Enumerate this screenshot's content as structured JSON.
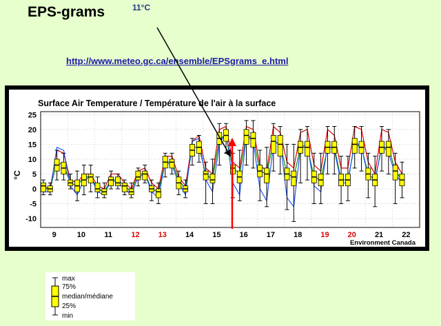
{
  "slide": {
    "title": "EPS-grams",
    "callout": "11°C",
    "link": "http://www.meteo.gc.ca/ensemble/EPSgrams_e.html"
  },
  "legend": {
    "labels": [
      "max",
      "75%",
      "median/médiane",
      "25%",
      "min"
    ]
  },
  "colors": {
    "background": "#e6ffcc",
    "box_fill": "#ffff00",
    "median": "#000000",
    "control_run": "#dd0000",
    "series_green": "#008800",
    "series_blue": "#2255ff",
    "weekend_day": "#dd0000",
    "arrow": "#ff0000"
  },
  "chart_data": {
    "type": "boxplot",
    "title": "Surface Air Temperature / Température de l'air à la surface",
    "ylabel": "°C",
    "ylim": [
      -13,
      26
    ],
    "yticks": [
      25,
      20,
      15,
      10,
      5,
      0,
      -5,
      -10
    ],
    "grid": true,
    "day_labels": [
      {
        "label": "9",
        "x": 9.5
      },
      {
        "label": "10",
        "x": 10.5
      },
      {
        "label": "11",
        "x": 11.5
      },
      {
        "label": "12",
        "x": 12.5,
        "color": "#dd0000"
      },
      {
        "label": "13",
        "x": 13.5,
        "color": "#dd0000"
      },
      {
        "label": "14",
        "x": 14.5
      },
      {
        "label": "15",
        "x": 15.5
      },
      {
        "label": "16",
        "x": 16.5
      },
      {
        "label": "17",
        "x": 17.5
      },
      {
        "label": "18",
        "x": 18.5
      },
      {
        "label": "19",
        "x": 19.5,
        "color": "#dd0000"
      },
      {
        "label": "20",
        "x": 20.5,
        "color": "#dd0000"
      },
      {
        "label": "21",
        "x": 21.5
      },
      {
        "label": "22",
        "x": 22.5
      }
    ],
    "xlim": [
      9.0,
      23.0
    ],
    "credit": "Environment Canada",
    "boxes": [
      {
        "t": 9.1,
        "min": -2,
        "q1": -1,
        "med": 1,
        "q3": 2,
        "max": 3
      },
      {
        "t": 9.35,
        "min": -2,
        "q1": -1,
        "med": 0,
        "q3": 1,
        "max": 2
      },
      {
        "t": 9.6,
        "min": 3,
        "q1": 6,
        "med": 8,
        "q3": 10,
        "max": 13
      },
      {
        "t": 9.85,
        "min": 3,
        "q1": 5,
        "med": 7,
        "q3": 9,
        "max": 12
      },
      {
        "t": 10.1,
        "min": 0,
        "q1": 1,
        "med": 2,
        "q3": 3,
        "max": 5
      },
      {
        "t": 10.35,
        "min": -4,
        "q1": -1,
        "med": 1,
        "q3": 3,
        "max": 6
      },
      {
        "t": 10.6,
        "min": -2,
        "q1": 1,
        "med": 3,
        "q3": 5,
        "max": 8
      },
      {
        "t": 10.85,
        "min": -1,
        "q1": 2,
        "med": 4,
        "q3": 5,
        "max": 8
      },
      {
        "t": 11.1,
        "min": -3,
        "q1": -1,
        "med": 0,
        "q3": 2,
        "max": 4
      },
      {
        "t": 11.35,
        "min": -3,
        "q1": -2,
        "med": -1,
        "q3": 0,
        "max": 2
      },
      {
        "t": 11.6,
        "min": 0,
        "q1": 1,
        "med": 3,
        "q3": 4,
        "max": 6
      },
      {
        "t": 11.85,
        "min": 0,
        "q1": 1,
        "med": 2,
        "q3": 4,
        "max": 5
      },
      {
        "t": 12.1,
        "min": -2,
        "q1": -1,
        "med": 1,
        "q3": 2,
        "max": 3
      },
      {
        "t": 12.35,
        "min": -3,
        "q1": -2,
        "med": -1,
        "q3": 0,
        "max": 2
      },
      {
        "t": 12.6,
        "min": 1,
        "q1": 3,
        "med": 4,
        "q3": 6,
        "max": 7
      },
      {
        "t": 12.85,
        "min": 2,
        "q1": 3,
        "med": 5,
        "q3": 6,
        "max": 8
      },
      {
        "t": 13.1,
        "min": -4,
        "q1": -1,
        "med": 0,
        "q3": 1,
        "max": 3
      },
      {
        "t": 13.35,
        "min": -5,
        "q1": -3,
        "med": -1,
        "q3": 0,
        "max": 2
      },
      {
        "t": 13.6,
        "min": 4,
        "q1": 7,
        "med": 9,
        "q3": 11,
        "max": 12
      },
      {
        "t": 13.85,
        "min": 5,
        "q1": 7,
        "med": 9,
        "q3": 10,
        "max": 12
      },
      {
        "t": 14.1,
        "min": -2,
        "q1": 0,
        "med": 2,
        "q3": 4,
        "max": 6
      },
      {
        "t": 14.35,
        "min": -3,
        "q1": -1,
        "med": 0,
        "q3": 1,
        "max": 3
      },
      {
        "t": 14.6,
        "min": 8,
        "q1": 11,
        "med": 13,
        "q3": 15,
        "max": 17
      },
      {
        "t": 14.85,
        "min": 9,
        "q1": 12,
        "med": 14,
        "q3": 16,
        "max": 18
      },
      {
        "t": 15.1,
        "min": -5,
        "q1": 3,
        "med": 5,
        "q3": 6,
        "max": 9
      },
      {
        "t": 15.35,
        "min": -5,
        "q1": 2,
        "med": 3,
        "q3": 5,
        "max": 10
      },
      {
        "t": 15.6,
        "min": 8,
        "q1": 15,
        "med": 17,
        "q3": 19,
        "max": 22
      },
      {
        "t": 15.85,
        "min": 12,
        "q1": 16,
        "med": 18,
        "q3": 20,
        "max": 22
      },
      {
        "t": 16.1,
        "min": -3,
        "q1": 5,
        "med": 7,
        "q3": 8,
        "max": 12
      },
      {
        "t": 16.35,
        "min": -4,
        "q1": 2,
        "med": 4,
        "q3": 6,
        "max": 13
      },
      {
        "t": 16.6,
        "min": 8,
        "q1": 15,
        "med": 18,
        "q3": 20,
        "max": 23
      },
      {
        "t": 16.85,
        "min": 7,
        "q1": 14,
        "med": 17,
        "q3": 19,
        "max": 23
      },
      {
        "t": 17.1,
        "min": -4,
        "q1": 4,
        "med": 6,
        "q3": 8,
        "max": 13
      },
      {
        "t": 17.35,
        "min": -6,
        "q1": 2,
        "med": 5,
        "q3": 7,
        "max": 14
      },
      {
        "t": 17.6,
        "min": 6,
        "q1": 12,
        "med": 16,
        "q3": 18,
        "max": 22
      },
      {
        "t": 17.85,
        "min": 5,
        "q1": 11,
        "med": 15,
        "q3": 18,
        "max": 21
      },
      {
        "t": 18.1,
        "min": -7,
        "q1": 3,
        "med": 5,
        "q3": 7,
        "max": 15
      },
      {
        "t": 18.35,
        "min": -11,
        "q1": 1,
        "med": 4,
        "q3": 6,
        "max": 15
      },
      {
        "t": 18.6,
        "min": 2,
        "q1": 12,
        "med": 14,
        "q3": 16,
        "max": 20
      },
      {
        "t": 18.85,
        "min": 3,
        "q1": 11,
        "med": 14,
        "q3": 16,
        "max": 21
      },
      {
        "t": 19.1,
        "min": -5,
        "q1": 2,
        "med": 4,
        "q3": 6,
        "max": 12
      },
      {
        "t": 19.35,
        "min": -5,
        "q1": 1,
        "med": 3,
        "q3": 5,
        "max": 12
      },
      {
        "t": 19.6,
        "min": 5,
        "q1": 12,
        "med": 14,
        "q3": 16,
        "max": 21
      },
      {
        "t": 19.85,
        "min": 5,
        "q1": 12,
        "med": 14,
        "q3": 16,
        "max": 21
      },
      {
        "t": 20.1,
        "min": -5,
        "q1": 1,
        "med": 3,
        "q3": 5,
        "max": 11
      },
      {
        "t": 20.35,
        "min": -4,
        "q1": 1,
        "med": 3,
        "q3": 5,
        "max": 11
      },
      {
        "t": 20.6,
        "min": 7,
        "q1": 12,
        "med": 15,
        "q3": 17,
        "max": 21
      },
      {
        "t": 20.85,
        "min": 6,
        "q1": 12,
        "med": 14,
        "q3": 16,
        "max": 21
      },
      {
        "t": 21.1,
        "min": -3,
        "q1": 3,
        "med": 5,
        "q3": 7,
        "max": 12
      },
      {
        "t": 21.35,
        "min": -6,
        "q1": 1,
        "med": 3,
        "q3": 5,
        "max": 11
      },
      {
        "t": 21.6,
        "min": 6,
        "q1": 12,
        "med": 14,
        "q3": 16,
        "max": 21
      },
      {
        "t": 21.85,
        "min": 5,
        "q1": 11,
        "med": 14,
        "q3": 16,
        "max": 20
      },
      {
        "t": 22.1,
        "min": -5,
        "q1": 3,
        "med": 6,
        "q3": 8,
        "max": 12
      },
      {
        "t": 22.35,
        "min": -3,
        "q1": 1,
        "med": 3,
        "q3": 5,
        "max": 9
      }
    ],
    "series": [
      {
        "color": "#dd0000",
        "values": [
          1,
          0,
          13,
          12,
          3,
          2,
          5,
          5,
          1,
          0,
          5,
          5,
          2,
          0,
          6,
          7,
          2,
          0,
          11,
          11,
          4,
          1,
          16,
          18,
          7,
          5,
          20,
          21,
          9,
          7,
          21,
          20,
          8,
          6,
          21,
          19,
          9,
          7,
          19,
          20,
          8,
          6,
          20,
          18,
          7,
          7,
          21,
          20,
          9,
          5,
          20,
          19,
          9,
          5
        ]
      },
      {
        "color": "#008800",
        "values": [
          0,
          0,
          9,
          8,
          2,
          1,
          4,
          4,
          0,
          -1,
          3,
          3,
          1,
          -1,
          5,
          5,
          0,
          -1,
          9,
          9,
          3,
          0,
          14,
          14,
          5,
          3,
          17,
          18,
          7,
          5,
          18,
          17,
          6,
          5,
          16,
          15,
          5,
          4,
          14,
          14,
          4,
          3,
          14,
          14,
          3,
          3,
          15,
          14,
          5,
          3,
          14,
          14,
          6,
          3
        ]
      },
      {
        "color": "#2255ff",
        "values": [
          -1,
          -1,
          14,
          13,
          1,
          -2,
          3,
          4,
          -1,
          -2,
          3,
          2,
          0,
          -2,
          4,
          5,
          -1,
          -3,
          9,
          8,
          2,
          -2,
          16,
          17,
          3,
          -1,
          15,
          19,
          2,
          -2,
          18,
          16,
          0,
          -4,
          15,
          16,
          -3,
          -6,
          14,
          15,
          1,
          -1,
          15,
          13,
          2,
          2,
          16,
          14,
          4,
          2,
          15,
          12,
          5,
          2
        ]
      }
    ]
  }
}
